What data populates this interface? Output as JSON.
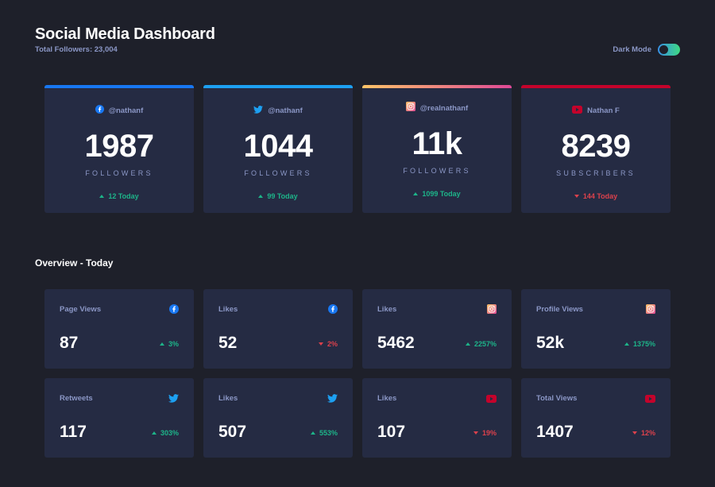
{
  "header": {
    "title": "Social Media Dashboard",
    "subtitle": "Total Followers: 23,004",
    "dark_mode_label": "Dark Mode"
  },
  "colors": {
    "facebook": "#1877f2",
    "twitter": "#1da0f2",
    "instagram_gradient": [
      "#fdc468",
      "#df4996"
    ],
    "youtube": "#c4032b",
    "up": "#1db489",
    "down": "#dc414c"
  },
  "cards": [
    {
      "platform": "facebook",
      "icon": "facebook-icon",
      "handle": "@nathanf",
      "count": "1987",
      "unit": "Followers",
      "today": "12 Today",
      "trend": "up"
    },
    {
      "platform": "twitter",
      "icon": "twitter-icon",
      "handle": "@nathanf",
      "count": "1044",
      "unit": "Followers",
      "today": "99 Today",
      "trend": "up"
    },
    {
      "platform": "instagram",
      "icon": "instagram-icon",
      "handle": "@realnathanf",
      "count": "11k",
      "unit": "Followers",
      "today": "1099 Today",
      "trend": "up"
    },
    {
      "platform": "youtube",
      "icon": "youtube-icon",
      "handle": "Nathan F",
      "count": "8239",
      "unit": "Subscribers",
      "today": "144 Today",
      "trend": "down"
    }
  ],
  "overview": {
    "title": "Overview - Today",
    "items": [
      {
        "label": "Page Views",
        "icon": "facebook-icon",
        "value": "87",
        "change": "3%",
        "trend": "up"
      },
      {
        "label": "Likes",
        "icon": "facebook-icon",
        "value": "52",
        "change": "2%",
        "trend": "down"
      },
      {
        "label": "Likes",
        "icon": "instagram-icon",
        "value": "5462",
        "change": "2257%",
        "trend": "up"
      },
      {
        "label": "Profile Views",
        "icon": "instagram-icon",
        "value": "52k",
        "change": "1375%",
        "trend": "up"
      },
      {
        "label": "Retweets",
        "icon": "twitter-icon",
        "value": "117",
        "change": "303%",
        "trend": "up"
      },
      {
        "label": "Likes",
        "icon": "twitter-icon",
        "value": "507",
        "change": "553%",
        "trend": "up"
      },
      {
        "label": "Likes",
        "icon": "youtube-icon",
        "value": "107",
        "change": "19%",
        "trend": "down"
      },
      {
        "label": "Total Views",
        "icon": "youtube-icon",
        "value": "1407",
        "change": "12%",
        "trend": "down"
      }
    ]
  }
}
